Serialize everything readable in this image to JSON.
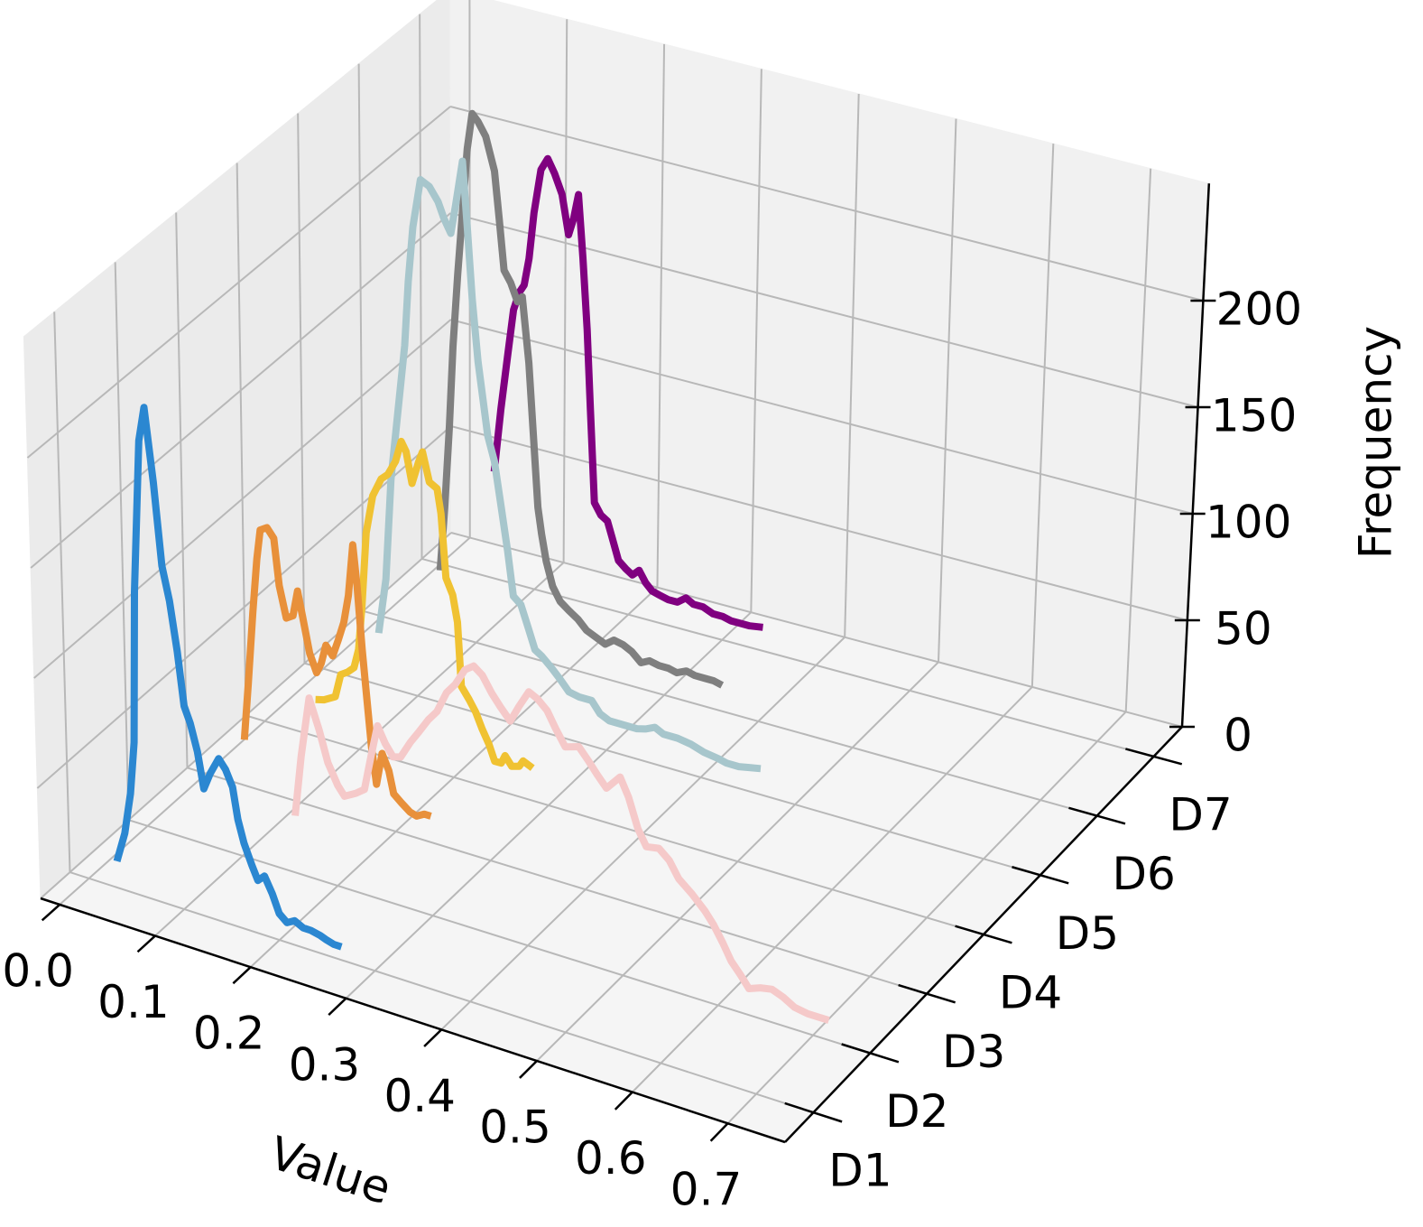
{
  "chart_data": {
    "type": "line3d",
    "x_label": "Value",
    "z_label": "Frequency",
    "xlim": [
      -0.02,
      0.76
    ],
    "xticks": [
      {
        "value": 0,
        "label": "0.0"
      },
      0.1,
      0.2,
      0.3,
      0.4,
      0.5,
      0.6,
      0.7
    ],
    "zlim": [
      0,
      255
    ],
    "zticks": [
      0,
      50,
      100,
      150,
      200
    ],
    "categories": [
      "D1",
      "D2",
      "D3",
      "D4",
      "D5",
      "D6",
      "D7"
    ],
    "grid": true,
    "series": [
      {
        "color": "#2b87d1",
        "x": [
          0.03,
          0.039,
          0.046,
          0.051,
          0.055,
          0.063,
          0.069,
          0.077,
          0.084,
          0.091,
          0.098,
          0.104,
          0.11,
          0.117,
          0.123,
          0.13,
          0.139,
          0.146,
          0.153,
          0.158,
          0.164,
          0.172,
          0.178,
          0.185,
          0.193,
          0.2,
          0.208,
          0.216,
          0.225,
          0.233,
          0.243,
          0.249,
          0.257,
          0.265
        ],
        "values": [
          12,
          26,
          45,
          69,
          138,
          208,
          224,
          191,
          154,
          139,
          117,
          93,
          86,
          74,
          58,
          66,
          74,
          70,
          63,
          49,
          39,
          30,
          24,
          27,
          20,
          12,
          9,
          11,
          9,
          9,
          8,
          7,
          6,
          6
        ]
      },
      {
        "color": "#f5c9c9",
        "x": [
          0.156,
          0.163,
          0.172,
          0.182,
          0.191,
          0.201,
          0.208,
          0.22,
          0.229,
          0.236,
          0.243,
          0.251,
          0.259,
          0.267,
          0.277,
          0.286,
          0.296,
          0.305,
          0.315,
          0.324,
          0.334,
          0.343,
          0.352,
          0.362,
          0.371,
          0.381,
          0.39,
          0.4,
          0.409,
          0.419,
          0.428,
          0.438,
          0.452,
          0.462,
          0.471,
          0.481,
          0.495,
          0.504,
          0.514,
          0.523,
          0.536,
          0.547,
          0.557,
          0.571,
          0.585,
          0.594,
          0.604,
          0.613,
          0.623,
          0.632,
          0.644,
          0.656,
          0.668,
          0.68,
          0.694,
          0.708,
          0.716
        ],
        "values": [
          26,
          54,
          82,
          69,
          55,
          46,
          42,
          45,
          48,
          64,
          79,
          72,
          67,
          68,
          76,
          82,
          89,
          94,
          104,
          109,
          117,
          120,
          117,
          110,
          105,
          100,
          108,
          116,
          114,
          110,
          103,
          96,
          98,
          93,
          88,
          83,
          90,
          82,
          69,
          62,
          63,
          59,
          52,
          47,
          41,
          36,
          29,
          22,
          17,
          12,
          14,
          15,
          13,
          10,
          9,
          9,
          9
        ]
      },
      {
        "color": "#e8903a",
        "x": [
          0.041,
          0.046,
          0.052,
          0.057,
          0.061,
          0.068,
          0.075,
          0.08,
          0.087,
          0.094,
          0.099,
          0.104,
          0.111,
          0.118,
          0.123,
          0.128,
          0.135,
          0.141,
          0.147,
          0.152,
          0.157,
          0.161,
          0.166,
          0.17,
          0.175,
          0.18,
          0.186,
          0.193,
          0.198,
          0.206,
          0.215,
          0.222,
          0.23,
          0.237
        ],
        "values": [
          21,
          47,
          81,
          106,
          120,
          122,
          118,
          97,
          83,
          85,
          97,
          86,
          70,
          62,
          67,
          76,
          72,
          80,
          89,
          102,
          126,
          108,
          79,
          59,
          35,
          19,
          34,
          27,
          17,
          14,
          11,
          10,
          12,
          12
        ]
      },
      {
        "color": "#f0c232",
        "x": [
          0.054,
          0.063,
          0.075,
          0.081,
          0.088,
          0.095,
          0.1,
          0.104,
          0.109,
          0.116,
          0.125,
          0.132,
          0.14,
          0.146,
          0.151,
          0.157,
          0.164,
          0.168,
          0.175,
          0.183,
          0.187,
          0.192,
          0.199,
          0.204,
          0.208,
          0.216,
          0.223,
          0.23,
          0.237,
          0.243,
          0.25,
          0.254,
          0.261,
          0.269,
          0.273,
          0.283
        ],
        "values": [
          17,
          18,
          21,
          32,
          34,
          37,
          46,
          67,
          101,
          119,
          128,
          131,
          138,
          148,
          144,
          130,
          141,
          146,
          133,
          131,
          120,
          91,
          84,
          72,
          43,
          38,
          33,
          26,
          20,
          13,
          13,
          17,
          13,
          14,
          17,
          15
        ]
      },
      {
        "color": "#a7c6cc",
        "x": [
          0.059,
          0.067,
          0.073,
          0.08,
          0.088,
          0.092,
          0.097,
          0.105,
          0.114,
          0.123,
          0.129,
          0.136,
          0.141,
          0.148,
          0.153,
          0.158,
          0.164,
          0.174,
          0.181,
          0.188,
          0.195,
          0.201,
          0.209,
          0.217,
          0.224,
          0.231,
          0.241,
          0.25,
          0.26,
          0.271,
          0.284,
          0.293,
          0.303,
          0.317,
          0.332,
          0.341,
          0.351,
          0.36,
          0.375,
          0.389,
          0.403,
          0.418,
          0.427,
          0.44,
          0.451,
          0.463
        ],
        "values": [
          24,
          50,
          97,
          127,
          161,
          191,
          217,
          240,
          238,
          232,
          225,
          219,
          233,
          254,
          223,
          191,
          163,
          130,
          119,
          99,
          79,
          59,
          56,
          46,
          37,
          35,
          31,
          27,
          22,
          21,
          21,
          16,
          14,
          14,
          14,
          15,
          17,
          15,
          15,
          14,
          12,
          11,
          10,
          10,
          11,
          12
        ]
      },
      {
        "color": "#7f7f7f",
        "x": [
          0.062,
          0.067,
          0.072,
          0.076,
          0.081,
          0.086,
          0.091,
          0.096,
          0.102,
          0.11,
          0.119,
          0.124,
          0.129,
          0.136,
          0.143,
          0.148,
          0.155,
          0.16,
          0.165,
          0.169,
          0.174,
          0.181,
          0.189,
          0.198,
          0.208,
          0.217,
          0.227,
          0.237,
          0.246,
          0.256,
          0.265,
          0.275,
          0.284,
          0.294,
          0.304,
          0.313,
          0.323,
          0.332,
          0.342,
          0.352,
          0.361
        ],
        "values": [
          29,
          59,
          97,
          135,
          169,
          199,
          229,
          246,
          243,
          237,
          222,
          200,
          177,
          172,
          164,
          167,
          137,
          104,
          71,
          59,
          47,
          36,
          30,
          27,
          24,
          20,
          18,
          16,
          19,
          18,
          16,
          12,
          14,
          13,
          13,
          12,
          14,
          13,
          13,
          13,
          12
        ]
      },
      {
        "color": "#800080",
        "x": [
          0.057,
          0.064,
          0.071,
          0.077,
          0.083,
          0.088,
          0.093,
          0.098,
          0.105,
          0.112,
          0.119,
          0.127,
          0.134,
          0.139,
          0.144,
          0.149,
          0.154,
          0.158,
          0.163,
          0.17,
          0.177,
          0.182,
          0.189,
          0.197,
          0.204,
          0.211,
          0.218,
          0.225,
          0.233,
          0.242,
          0.252,
          0.261,
          0.269,
          0.279,
          0.29,
          0.3,
          0.309,
          0.319,
          0.329,
          0.343
        ],
        "values": [
          50,
          80,
          106,
          128,
          137,
          141,
          154,
          176,
          197,
          203,
          197,
          188,
          170,
          178,
          190,
          161,
          128,
          91,
          48,
          43,
          41,
          34,
          24,
          21,
          19,
          22,
          17,
          14,
          13,
          12,
          12,
          15,
          13,
          13,
          11,
          11,
          10,
          10,
          10,
          11
        ]
      }
    ]
  }
}
